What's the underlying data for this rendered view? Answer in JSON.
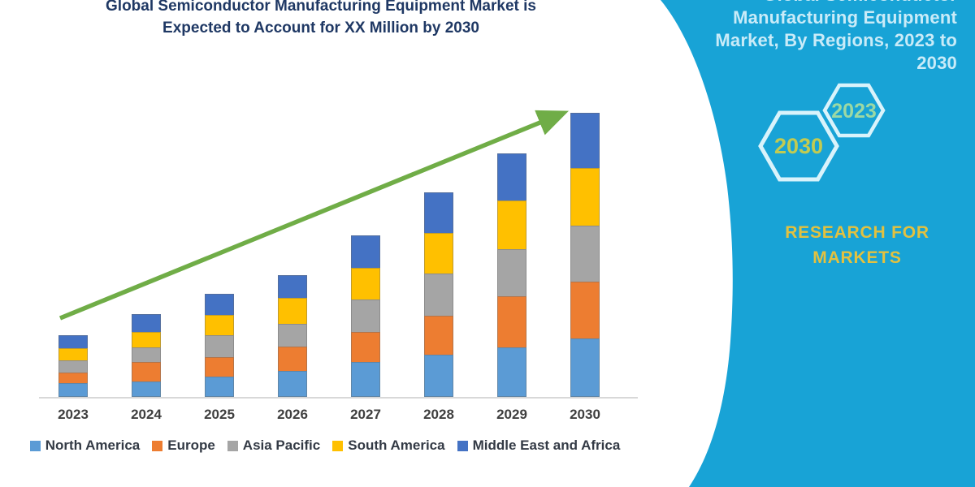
{
  "title": {
    "lines": [
      "Global Semiconductor Manufacturing Equipment Market is",
      "Expected to Account for XX Million by 2030"
    ]
  },
  "chart_data": {
    "type": "bar",
    "subtype": "stacked-column",
    "title": "Global Semiconductor Manufacturing Equipment Market is Expected to Account for XX Million by 2030",
    "categories": [
      "2023",
      "2024",
      "2025",
      "2026",
      "2027",
      "2028",
      "2029",
      "2030"
    ],
    "series": [
      {
        "name": "North America",
        "color": "#5B9BD5",
        "values": [
          17,
          19,
          25,
          32,
          43,
          52,
          61,
          72
        ]
      },
      {
        "name": "Europe",
        "color": "#ED7D31",
        "values": [
          13,
          24,
          24,
          30,
          37,
          48,
          63,
          70
        ]
      },
      {
        "name": "Asia Pacific",
        "color": "#A5A5A5",
        "values": [
          15,
          18,
          27,
          28,
          40,
          52,
          58,
          69
        ]
      },
      {
        "name": "South America",
        "color": "#FFC000",
        "values": [
          15,
          19,
          25,
          32,
          39,
          50,
          60,
          71
        ]
      },
      {
        "name": "Middle East and Africa",
        "color": "#4472C4",
        "values": [
          16,
          22,
          26,
          28,
          40,
          50,
          58,
          68
        ]
      }
    ],
    "stack_order_bottom_to_top": [
      "North America",
      "Europe",
      "Asia Pacific",
      "South America",
      "Middle East and Africa"
    ],
    "totals": [
      76,
      102,
      127,
      150,
      199,
      252,
      300,
      350
    ],
    "unit": "relative height (no value axis shown; values labeled XX Million)",
    "xlabel": "",
    "ylabel": "",
    "grid": false,
    "legend_position": "bottom",
    "annotations": [
      {
        "type": "trend-arrow",
        "direction": "up-right",
        "color": "#70AD47"
      }
    ]
  },
  "sidebar": {
    "background_color": "#18A3D6",
    "title_lines": [
      "Global Semiconductor",
      "Manufacturing Equipment",
      "Market, By Regions, 2023 to",
      "2030"
    ],
    "hexagons": [
      {
        "label": "2030",
        "text_color": "#C2CB51"
      },
      {
        "label": "2023",
        "text_color": "#9CD9A4"
      }
    ],
    "brand_lines": [
      "RESEARCH FOR",
      "MARKETS"
    ],
    "brand_color": "#E3C13F"
  }
}
